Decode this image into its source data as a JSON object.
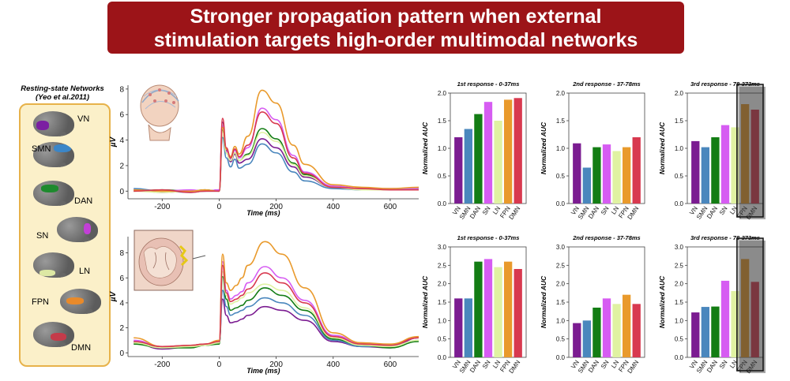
{
  "title": {
    "line1": "Stronger propagation pattern when external",
    "line2": "stimulation targets high-order multimodal networks"
  },
  "legend": {
    "title_line1": "Resting-state Networks",
    "title_line2": "(Yeo et al.2011)",
    "networks": [
      {
        "label": "VN",
        "color": "#7b1fa2"
      },
      {
        "label": "SMN",
        "color": "#3b86c8"
      },
      {
        "label": "DAN",
        "color": "#1e8a2e"
      },
      {
        "label": "SN",
        "color": "#c23fd6"
      },
      {
        "label": "LN",
        "color": "#dde8a4"
      },
      {
        "label": "FPN",
        "color": "#e98a2a"
      },
      {
        "label": "DMN",
        "color": "#c43b4a"
      }
    ]
  },
  "colors": {
    "VN": "#7b1c91",
    "SMN": "#4a87bd",
    "DAN": "#137d14",
    "SN": "#d65cf2",
    "LN": "#e0f2a2",
    "FPN": "#e99a2c",
    "DMN": "#d8394f"
  },
  "chart_data": [
    {
      "type": "line",
      "id": "tep_top",
      "xlabel": "Time (ms)",
      "ylabel": "µV",
      "xlim": [
        -320,
        700
      ],
      "ylim": [
        -0.6,
        8.3
      ],
      "xticks": [
        -200,
        0,
        200,
        400,
        600
      ],
      "yticks": [
        0,
        2,
        4,
        6,
        8
      ],
      "series": [
        {
          "name": "VN",
          "x": [
            -300,
            -200,
            -100,
            -50,
            0,
            12,
            25,
            40,
            55,
            70,
            100,
            150,
            200,
            260,
            300,
            400,
            500,
            600,
            700
          ],
          "y": [
            0.1,
            -0.1,
            0,
            0,
            0.1,
            5.4,
            3.2,
            2.3,
            2.9,
            2.2,
            2.5,
            4.1,
            3.4,
            1.9,
            1.1,
            0.3,
            0.1,
            0.1,
            0.2
          ]
        },
        {
          "name": "SMN",
          "x": [
            -300,
            -200,
            -100,
            -50,
            0,
            12,
            25,
            40,
            55,
            70,
            100,
            150,
            200,
            260,
            300,
            400,
            500,
            600,
            700
          ],
          "y": [
            0.2,
            0,
            -0.1,
            0,
            0,
            4.2,
            2.6,
            1.9,
            2.5,
            1.8,
            2.1,
            3.7,
            3.0,
            1.5,
            0.8,
            0.2,
            0.1,
            0.1,
            0.1
          ]
        },
        {
          "name": "DAN",
          "x": [
            -300,
            -200,
            -100,
            -50,
            0,
            12,
            25,
            40,
            55,
            70,
            100,
            150,
            200,
            260,
            300,
            400,
            500,
            600,
            700
          ],
          "y": [
            0,
            0.1,
            0,
            0.1,
            0,
            4.8,
            3.0,
            2.4,
            3.0,
            2.4,
            2.9,
            4.9,
            4.1,
            2.2,
            1.3,
            0.3,
            0.2,
            0.1,
            0.2
          ]
        },
        {
          "name": "SN",
          "x": [
            -300,
            -200,
            -100,
            -50,
            0,
            12,
            25,
            40,
            55,
            70,
            100,
            150,
            200,
            260,
            300,
            400,
            500,
            600,
            700
          ],
          "y": [
            0.1,
            0,
            0.1,
            0,
            0.1,
            5.1,
            3.1,
            2.5,
            3.2,
            2.6,
            3.4,
            6.5,
            5.6,
            2.8,
            1.5,
            0.4,
            0.2,
            0.2,
            0.2
          ]
        },
        {
          "name": "LN",
          "x": [
            -300,
            -200,
            -100,
            -50,
            0,
            12,
            25,
            40,
            55,
            70,
            100,
            150,
            200,
            260,
            300,
            400,
            500,
            600,
            700
          ],
          "y": [
            0,
            -0.1,
            0,
            0,
            0,
            4.9,
            3.0,
            2.4,
            3.0,
            2.4,
            2.8,
            4.6,
            3.9,
            2.1,
            1.2,
            0.3,
            0.1,
            0.1,
            0.1
          ]
        },
        {
          "name": "FPN",
          "x": [
            -300,
            -200,
            -100,
            -50,
            0,
            12,
            25,
            40,
            55,
            70,
            100,
            150,
            200,
            260,
            300,
            400,
            500,
            600,
            700
          ],
          "y": [
            0.1,
            0,
            0,
            0.1,
            0,
            5.0,
            3.3,
            2.7,
            3.5,
            2.9,
            4.3,
            7.9,
            6.9,
            3.6,
            2.1,
            0.5,
            0.3,
            0.2,
            0.3
          ]
        },
        {
          "name": "DMN",
          "x": [
            -300,
            -200,
            -100,
            -50,
            0,
            12,
            25,
            40,
            55,
            70,
            100,
            150,
            200,
            260,
            300,
            400,
            500,
            600,
            700
          ],
          "y": [
            0,
            0.1,
            -0.1,
            0,
            0,
            5.7,
            3.4,
            2.6,
            3.3,
            2.7,
            3.6,
            6.2,
            5.3,
            2.6,
            1.4,
            0.3,
            0.2,
            0.1,
            0.1
          ]
        }
      ]
    },
    {
      "type": "line",
      "id": "tep_bottom",
      "xlabel": "Time (ms)",
      "ylabel": "µV",
      "xlim": [
        -320,
        700
      ],
      "ylim": [
        -0.3,
        9.3
      ],
      "xticks": [
        -200,
        0,
        200,
        400,
        600
      ],
      "yticks": [
        0,
        2,
        4,
        6,
        8
      ],
      "series": [
        {
          "name": "VN",
          "x": [
            -300,
            -200,
            -100,
            -50,
            0,
            12,
            25,
            40,
            60,
            80,
            100,
            160,
            220,
            300,
            400,
            500,
            600,
            700
          ],
          "y": [
            0.8,
            0.3,
            0.5,
            0.6,
            0.8,
            4.3,
            3.0,
            2.4,
            2.5,
            2.7,
            3.0,
            3.7,
            3.4,
            2.6,
            0.9,
            0.5,
            0.4,
            1.2
          ]
        },
        {
          "name": "SMN",
          "x": [
            -300,
            -200,
            -100,
            -50,
            0,
            12,
            25,
            40,
            60,
            80,
            100,
            160,
            220,
            300,
            400,
            500,
            600,
            700
          ],
          "y": [
            0.9,
            0.4,
            0.5,
            0.6,
            0.8,
            5.0,
            3.7,
            3.0,
            3.2,
            3.4,
            3.7,
            4.4,
            4.0,
            3.0,
            1.0,
            0.5,
            0.5,
            1.0
          ]
        },
        {
          "name": "DAN",
          "x": [
            -300,
            -200,
            -100,
            -50,
            0,
            12,
            25,
            40,
            60,
            80,
            100,
            160,
            220,
            300,
            400,
            500,
            600,
            700
          ],
          "y": [
            0.7,
            0.4,
            0.4,
            0.6,
            0.7,
            6.1,
            4.3,
            3.4,
            3.6,
            3.8,
            4.2,
            5.2,
            4.6,
            3.4,
            1.1,
            0.6,
            0.4,
            0.9
          ]
        },
        {
          "name": "SN",
          "x": [
            -300,
            -200,
            -100,
            -50,
            0,
            12,
            25,
            40,
            60,
            80,
            100,
            160,
            220,
            300,
            400,
            500,
            600,
            700
          ],
          "y": [
            1.0,
            0.5,
            0.6,
            0.7,
            0.9,
            7.3,
            5.0,
            4.3,
            4.6,
            4.9,
            5.6,
            6.9,
            6.0,
            4.2,
            1.4,
            0.8,
            0.6,
            1.2
          ]
        },
        {
          "name": "LN",
          "x": [
            -300,
            -200,
            -100,
            -50,
            0,
            12,
            25,
            40,
            60,
            80,
            100,
            160,
            220,
            300,
            400,
            500,
            600,
            700
          ],
          "y": [
            0.8,
            0.4,
            0.5,
            0.6,
            0.8,
            6.5,
            4.6,
            3.9,
            4.1,
            4.4,
            4.8,
            5.5,
            5.0,
            3.6,
            1.2,
            0.6,
            0.5,
            1.0
          ]
        },
        {
          "name": "FPN",
          "x": [
            -300,
            -200,
            -100,
            -50,
            0,
            12,
            25,
            40,
            60,
            80,
            100,
            160,
            220,
            300,
            400,
            500,
            600,
            700
          ],
          "y": [
            1.2,
            0.5,
            0.6,
            0.7,
            1.0,
            7.9,
            5.6,
            5.0,
            5.4,
            6.0,
            7.0,
            8.9,
            7.9,
            5.2,
            1.6,
            0.8,
            0.7,
            1.3
          ]
        },
        {
          "name": "DMN",
          "x": [
            -300,
            -200,
            -100,
            -50,
            0,
            12,
            25,
            40,
            60,
            80,
            100,
            160,
            220,
            300,
            400,
            500,
            600,
            700
          ],
          "y": [
            0.9,
            0.5,
            0.6,
            0.7,
            0.9,
            7.0,
            4.8,
            4.1,
            4.3,
            4.6,
            5.1,
            6.4,
            5.6,
            4.0,
            1.3,
            0.7,
            0.6,
            1.2
          ]
        }
      ]
    },
    {
      "type": "bar",
      "id": "auc_top_1",
      "title": "1st response - 0-37ms",
      "ylabel": "Normalized AUC",
      "categories": [
        "VN",
        "SMN",
        "DAN",
        "SN",
        "LN",
        "FPN",
        "DMN"
      ],
      "values": [
        1.2,
        1.35,
        1.62,
        1.84,
        1.5,
        1.88,
        1.91
      ],
      "ylim": [
        0,
        2.0
      ],
      "yticks": [
        0.0,
        0.5,
        1.0,
        1.5,
        2.0
      ],
      "highlight": false
    },
    {
      "type": "bar",
      "id": "auc_top_2",
      "title": "2nd response - 37-78ms",
      "ylabel": "Normalized AUC",
      "categories": [
        "VN",
        "SMN",
        "DAN",
        "SN",
        "LN",
        "FPN",
        "DMN"
      ],
      "values": [
        1.09,
        0.65,
        1.02,
        1.07,
        0.95,
        1.02,
        1.2
      ],
      "ylim": [
        0,
        2.0
      ],
      "yticks": [
        0.0,
        0.5,
        1.0,
        1.5,
        2.0
      ],
      "highlight": false
    },
    {
      "type": "bar",
      "id": "auc_top_3",
      "title": "3rd response - 78-373ms",
      "ylabel": "Normalized AUC",
      "categories": [
        "VN",
        "SMN",
        "DAN",
        "SN",
        "LN",
        "FPN",
        "DMN"
      ],
      "values": [
        1.13,
        1.02,
        1.2,
        1.42,
        1.38,
        1.8,
        1.7
      ],
      "ylim": [
        0,
        2.0
      ],
      "yticks": [
        0.0,
        0.5,
        1.0,
        1.5,
        2.0
      ],
      "highlight": true
    },
    {
      "type": "bar",
      "id": "auc_bot_1",
      "title": "1st response - 0-37ms",
      "ylabel": "Normalized AUC",
      "categories": [
        "VN",
        "SMN",
        "DAN",
        "SN",
        "LN",
        "FPN",
        "DMN"
      ],
      "values": [
        1.6,
        1.6,
        2.6,
        2.67,
        2.45,
        2.6,
        2.4
      ],
      "ylim": [
        0,
        3.0
      ],
      "yticks": [
        0.0,
        0.5,
        1.0,
        1.5,
        2.0,
        2.5,
        3.0
      ],
      "highlight": false
    },
    {
      "type": "bar",
      "id": "auc_bot_2",
      "title": "2nd response - 37-78ms",
      "ylabel": "Normalized AUC",
      "categories": [
        "VN",
        "SMN",
        "DAN",
        "SN",
        "LN",
        "FPN",
        "DMN"
      ],
      "values": [
        0.93,
        1.0,
        1.35,
        1.6,
        1.45,
        1.7,
        1.45
      ],
      "ylim": [
        0,
        3.0
      ],
      "yticks": [
        0.0,
        0.5,
        1.0,
        1.5,
        2.0,
        2.5,
        3.0
      ],
      "highlight": false
    },
    {
      "type": "bar",
      "id": "auc_bot_3",
      "title": "3rd response - 78-373ms",
      "ylabel": "Normalized AUC",
      "categories": [
        "VN",
        "SMN",
        "DAN",
        "SN",
        "LN",
        "FPN",
        "DMN"
      ],
      "values": [
        1.22,
        1.37,
        1.38,
        2.08,
        1.8,
        2.67,
        2.05
      ],
      "ylim": [
        0,
        3.0
      ],
      "yticks": [
        0.0,
        0.5,
        1.0,
        1.5,
        2.0,
        2.5,
        3.0
      ],
      "highlight": true
    }
  ]
}
